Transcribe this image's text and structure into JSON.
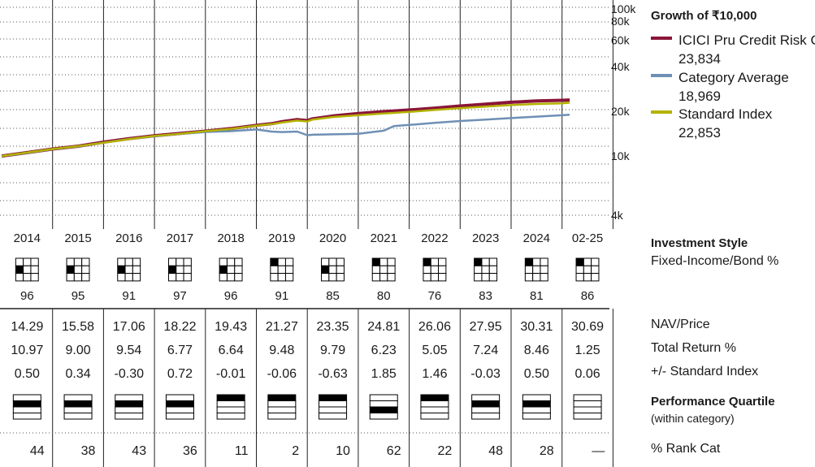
{
  "chart_data": {
    "type": "line",
    "title": "Growth of ₹10,000",
    "yscale": "log",
    "ylim": [
      4000,
      100000
    ],
    "y_ticks": [
      "100k",
      "80k",
      "60k",
      "40k",
      "20k",
      "10k",
      "4k"
    ],
    "x_labels": [
      "2014",
      "2015",
      "2016",
      "2017",
      "2018",
      "2019",
      "2020",
      "2021",
      "2022",
      "2023",
      "2024",
      "02-25"
    ],
    "x": [
      2014,
      2014.5,
      2015,
      2015.5,
      2016,
      2016.5,
      2017,
      2017.5,
      2018,
      2018.5,
      2019,
      2019.3,
      2019.5,
      2019.8,
      2020,
      2020.1,
      2020.5,
      2021,
      2021.5,
      2021.7,
      2022,
      2022.5,
      2023,
      2023.5,
      2024,
      2024.5,
      2025,
      2025.15
    ],
    "series": [
      {
        "name": "ICICI Pru Credit Risk Gr",
        "last_value": "23,834",
        "color": "#8a1538",
        "values": [
          10000,
          10550,
          11150,
          11650,
          12400,
          13100,
          13700,
          14200,
          14700,
          15300,
          16100,
          16500,
          17000,
          17600,
          17300,
          17800,
          18600,
          19300,
          19900,
          20100,
          20400,
          21000,
          21700,
          22300,
          23000,
          23500,
          23700,
          23834
        ]
      },
      {
        "name": "Category Average",
        "last_value": "18,969",
        "color": "#6f8fb5",
        "values": [
          10000,
          10500,
          11100,
          11600,
          12300,
          13000,
          13600,
          14100,
          14500,
          14700,
          15100,
          14600,
          14500,
          14600,
          13800,
          13900,
          14000,
          14100,
          14800,
          15900,
          16200,
          16700,
          17200,
          17600,
          18000,
          18400,
          18800,
          18969
        ]
      },
      {
        "name": "Standard Index",
        "last_value": "22,853",
        "color": "#b3b300",
        "values": [
          10000,
          10550,
          11150,
          11650,
          12300,
          13000,
          13650,
          14100,
          14700,
          15200,
          16000,
          16400,
          16800,
          17300,
          17100,
          17600,
          18300,
          18800,
          19300,
          19500,
          19800,
          20400,
          21000,
          21500,
          22000,
          22400,
          22600,
          22853
        ]
      }
    ]
  },
  "investment_style": {
    "title": "Investment Style",
    "subtitle": "Fixed-Income/Bond %",
    "style_box_cell": [
      4,
      4,
      4,
      4,
      4,
      1,
      4,
      1,
      1,
      1,
      1,
      1
    ],
    "values": [
      "96",
      "95",
      "91",
      "97",
      "96",
      "91",
      "85",
      "80",
      "76",
      "83",
      "81",
      "86"
    ]
  },
  "stats": {
    "rows": [
      {
        "label": "NAV/Price",
        "values": [
          "14.29",
          "15.58",
          "17.06",
          "18.22",
          "19.43",
          "21.27",
          "23.35",
          "24.81",
          "26.06",
          "27.95",
          "30.31",
          "30.69"
        ]
      },
      {
        "label": "Total Return %",
        "values": [
          "10.97",
          "9.00",
          "9.54",
          "6.77",
          "6.64",
          "9.48",
          "9.79",
          "6.23",
          "5.05",
          "7.24",
          "8.46",
          "1.25"
        ]
      },
      {
        "label": "+/- Standard Index",
        "values": [
          "0.50",
          "0.34",
          "-0.30",
          "0.72",
          "-0.01",
          "-0.06",
          "-0.63",
          "1.85",
          "1.46",
          "-0.03",
          "0.50",
          "0.06"
        ]
      }
    ]
  },
  "performance_quartile": {
    "title": "Performance Quartile",
    "subtitle": "(within category)",
    "quartiles": [
      2,
      2,
      2,
      2,
      1,
      1,
      1,
      3,
      1,
      2,
      2,
      0
    ]
  },
  "rank": {
    "label": "% Rank Cat",
    "values": [
      "44",
      "38",
      "43",
      "36",
      "11",
      "2",
      "10",
      "62",
      "22",
      "48",
      "28",
      "—"
    ]
  }
}
